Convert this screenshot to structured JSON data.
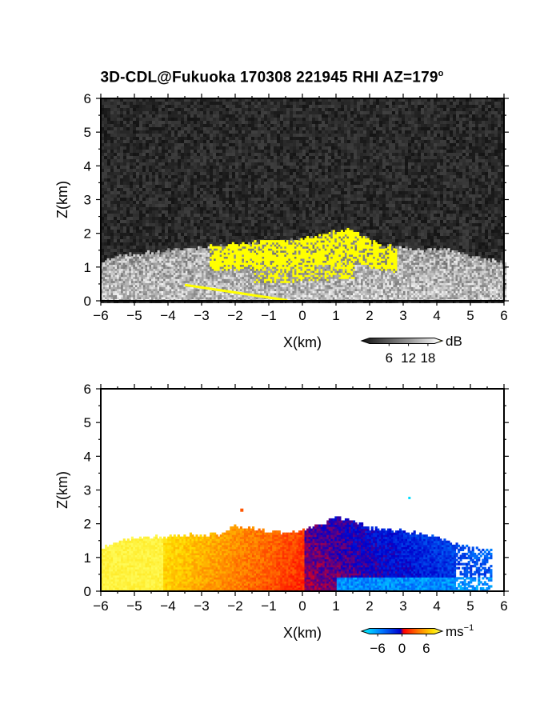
{
  "figure": {
    "title_main": "3D-CDL@Fukuoka 170308 221945 RHI AZ=179",
    "title_degree": "o"
  },
  "chart_data": [
    {
      "type": "heatmap",
      "quantity": "SNR",
      "xlabel": "X(km)",
      "ylabel": "Z(km)",
      "xlim": [
        -6,
        6
      ],
      "ylim": [
        0,
        6
      ],
      "xticks": [
        -6,
        -5,
        -4,
        -3,
        -2,
        -1,
        0,
        1,
        2,
        3,
        4,
        5,
        6
      ],
      "yticks": [
        0,
        1,
        2,
        3,
        4,
        5,
        6
      ],
      "background": "noise",
      "echo_top_profile_km": [
        [
          -6.0,
          1.1
        ],
        [
          -5.5,
          1.25
        ],
        [
          -5.0,
          1.35
        ],
        [
          -4.5,
          1.4
        ],
        [
          -4.0,
          1.45
        ],
        [
          -3.5,
          1.5
        ],
        [
          -3.0,
          1.55
        ],
        [
          -2.5,
          1.6
        ],
        [
          -2.0,
          1.65
        ],
        [
          -1.5,
          1.7
        ],
        [
          -1.0,
          1.75
        ],
        [
          -0.5,
          1.7
        ],
        [
          0.0,
          1.85
        ],
        [
          0.5,
          1.9
        ],
        [
          1.0,
          2.05
        ],
        [
          1.5,
          2.1
        ],
        [
          2.0,
          1.75
        ],
        [
          2.5,
          1.6
        ],
        [
          3.0,
          1.55
        ],
        [
          3.5,
          1.45
        ],
        [
          4.0,
          1.5
        ],
        [
          4.5,
          1.45
        ],
        [
          5.0,
          1.3
        ],
        [
          5.5,
          1.2
        ],
        [
          6.0,
          1.1
        ]
      ],
      "colorbar": {
        "unit": "dB",
        "ticks": [
          6,
          12,
          18
        ],
        "range": [
          0,
          20
        ],
        "colors": [
          "#111111",
          "#555555",
          "#999999",
          "#dddddd",
          "#ffffff",
          "#ffff00"
        ]
      }
    },
    {
      "type": "heatmap",
      "quantity": "Doppler velocity",
      "xlabel": "X(km)",
      "ylabel": "Z(km)",
      "xlim": [
        -6,
        6
      ],
      "ylim": [
        0,
        6
      ],
      "xticks": [
        -6,
        -5,
        -4,
        -3,
        -2,
        -1,
        0,
        1,
        2,
        3,
        4,
        5,
        6
      ],
      "yticks": [
        0,
        1,
        2,
        3,
        4,
        5,
        6
      ],
      "negative_side_range_km": [
        0,
        5.5
      ],
      "positive_side_range_km": [
        -6,
        0
      ],
      "echo_top_profile_km": [
        [
          -6.0,
          1.25
        ],
        [
          -5.5,
          1.45
        ],
        [
          -5.0,
          1.55
        ],
        [
          -4.5,
          1.58
        ],
        [
          -4.0,
          1.6
        ],
        [
          -3.5,
          1.62
        ],
        [
          -3.0,
          1.65
        ],
        [
          -2.5,
          1.65
        ],
        [
          -2.0,
          1.9
        ],
        [
          -1.5,
          1.85
        ],
        [
          -1.0,
          1.75
        ],
        [
          -0.5,
          1.7
        ],
        [
          0.0,
          1.8
        ],
        [
          0.5,
          1.95
        ],
        [
          1.0,
          2.15
        ],
        [
          1.5,
          2.05
        ],
        [
          2.0,
          1.85
        ],
        [
          2.5,
          1.8
        ],
        [
          3.0,
          1.75
        ],
        [
          3.5,
          1.65
        ],
        [
          4.0,
          1.6
        ],
        [
          4.5,
          1.4
        ],
        [
          5.0,
          1.3
        ],
        [
          5.5,
          1.2
        ]
      ],
      "colorbar": {
        "unit": "ms",
        "unit_exp": "-1",
        "ticks": [
          -6,
          0,
          6
        ],
        "range": [
          -8,
          8
        ],
        "colors": [
          "#00ffff",
          "#0077ff",
          "#0000cc",
          "#ff0000",
          "#ff7700",
          "#ffdd00",
          "#ffff66"
        ]
      }
    }
  ]
}
